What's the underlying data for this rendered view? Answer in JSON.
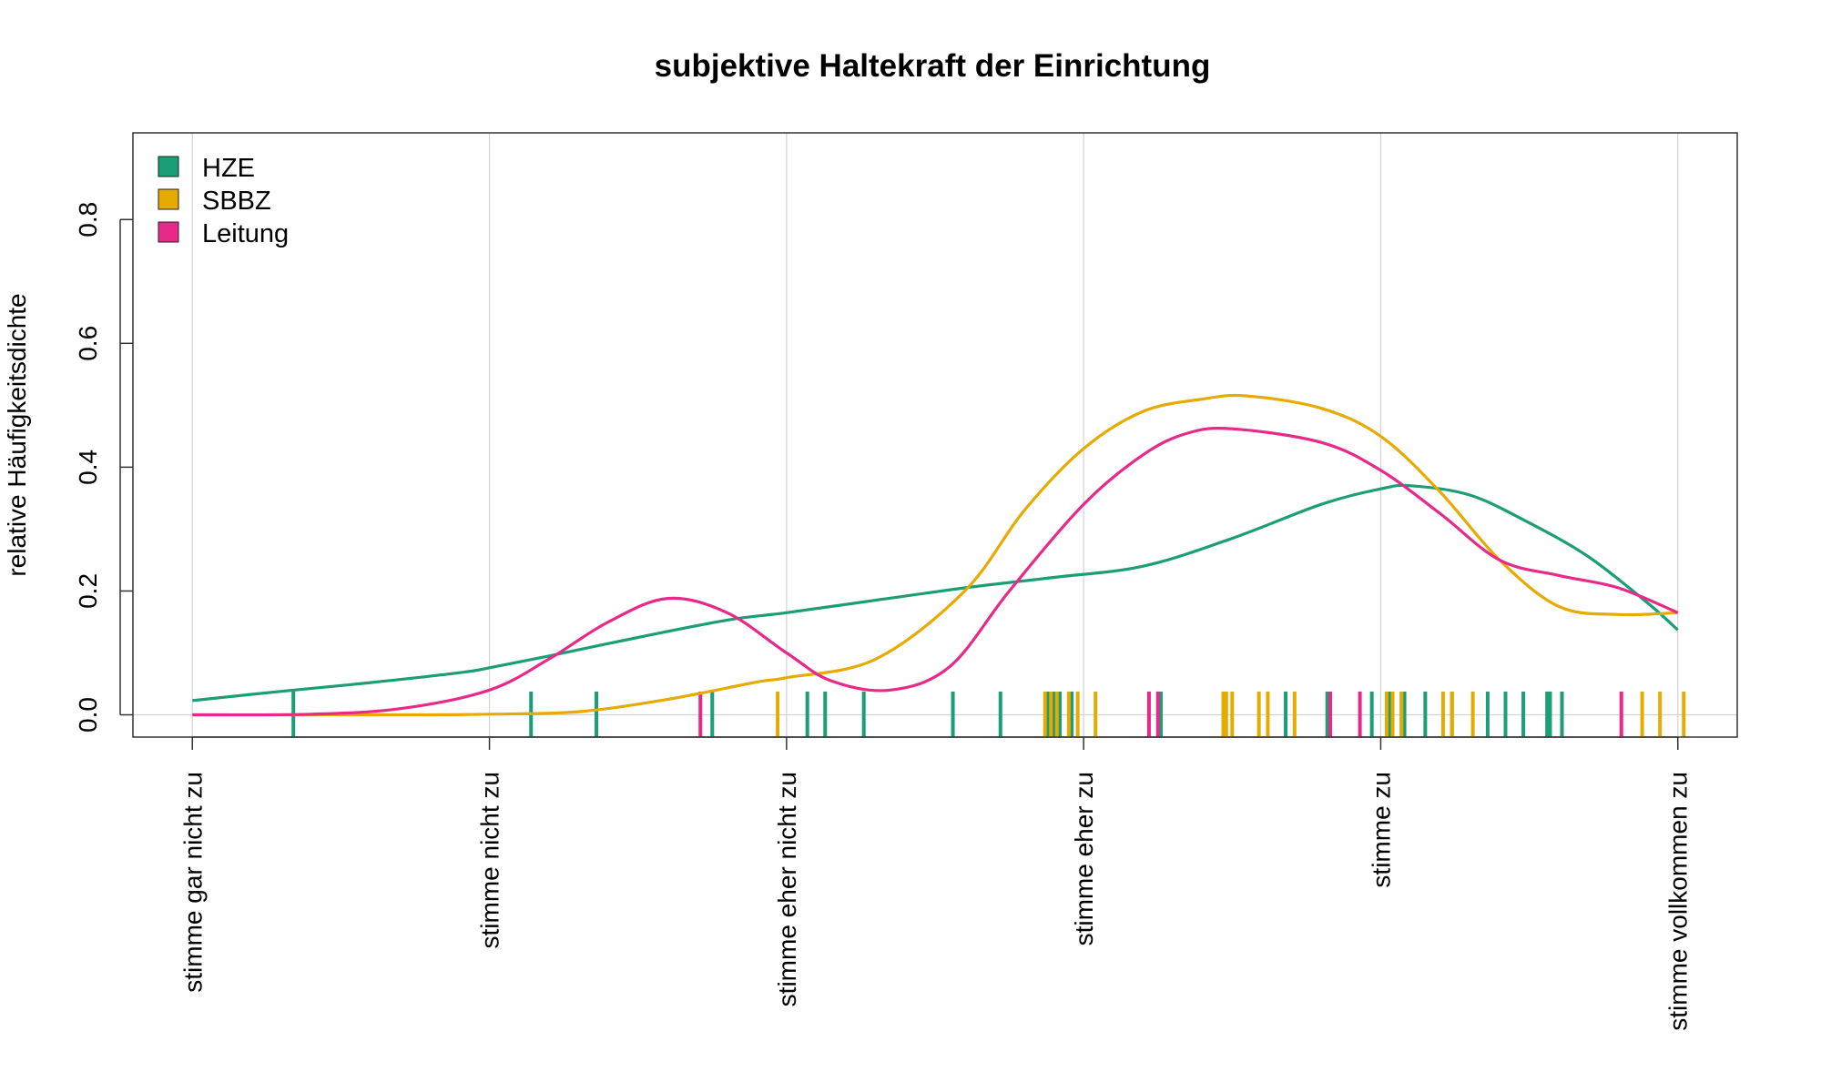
{
  "chart_data": {
    "type": "line",
    "title": "subjektive Haltekraft der Einrichtung",
    "xlabel": "",
    "ylabel": "relative Häufigkeitsdichte",
    "x_categories": [
      "stimme gar nicht zu",
      "stimme nicht zu",
      "stimme eher nicht zu",
      "stimme eher zu",
      "stimme zu",
      "stimme vollkommen zu"
    ],
    "xlim": [
      0.8,
      6.2
    ],
    "ylim": [
      -0.036,
      0.94
    ],
    "yticks": [
      0.0,
      0.2,
      0.4,
      0.6,
      0.8
    ],
    "grid": true,
    "legend_position": "top-left",
    "series": [
      {
        "name": "HZE",
        "color": "#1b9e77",
        "x": [
          1.0,
          1.3,
          1.6,
          1.9,
          2.0,
          2.2,
          2.5,
          2.8,
          3.0,
          3.3,
          3.6,
          3.9,
          4.2,
          4.5,
          4.8,
          5.0,
          5.1,
          5.3,
          5.5,
          5.7,
          5.9,
          6.0
        ],
        "y": [
          0.023,
          0.038,
          0.052,
          0.068,
          0.076,
          0.095,
          0.125,
          0.153,
          0.165,
          0.185,
          0.205,
          0.222,
          0.24,
          0.285,
          0.34,
          0.365,
          0.37,
          0.355,
          0.31,
          0.255,
          0.18,
          0.137
        ],
        "rug": [
          1.34,
          2.14,
          2.36,
          2.75,
          3.07,
          3.13,
          3.26,
          3.56,
          3.72,
          3.88,
          3.9,
          3.92,
          3.96,
          4.26,
          4.68,
          4.82,
          4.97,
          5.03,
          5.07,
          5.08,
          5.15,
          5.24,
          5.36,
          5.42,
          5.48,
          5.56,
          5.57,
          5.61
        ]
      },
      {
        "name": "SBBZ",
        "color": "#e6ab02",
        "x": [
          1.0,
          1.5,
          1.8,
          2.0,
          2.3,
          2.6,
          2.9,
          3.0,
          3.3,
          3.6,
          3.8,
          4.0,
          4.2,
          4.4,
          4.55,
          4.8,
          5.0,
          5.2,
          5.4,
          5.6,
          5.8,
          6.0
        ],
        "y": [
          0.0,
          0.0,
          0.0,
          0.001,
          0.005,
          0.025,
          0.053,
          0.06,
          0.09,
          0.2,
          0.33,
          0.43,
          0.49,
          0.51,
          0.515,
          0.495,
          0.45,
          0.36,
          0.25,
          0.175,
          0.162,
          0.165
        ],
        "rug": [
          2.97,
          3.87,
          3.89,
          3.91,
          3.95,
          3.98,
          4.04,
          4.47,
          4.48,
          4.5,
          4.59,
          4.62,
          4.71,
          5.02,
          5.04,
          5.07,
          5.21,
          5.24,
          5.31,
          5.88,
          5.94,
          6.02
        ]
      },
      {
        "name": "Leitung",
        "color": "#e7298a",
        "x": [
          1.0,
          1.4,
          1.7,
          2.0,
          2.2,
          2.4,
          2.6,
          2.8,
          3.0,
          3.15,
          3.35,
          3.55,
          3.75,
          4.0,
          4.2,
          4.35,
          4.5,
          4.8,
          5.0,
          5.2,
          5.4,
          5.6,
          5.8,
          6.0
        ],
        "y": [
          0.0,
          0.001,
          0.01,
          0.04,
          0.09,
          0.15,
          0.188,
          0.165,
          0.1,
          0.055,
          0.04,
          0.078,
          0.2,
          0.34,
          0.42,
          0.455,
          0.462,
          0.44,
          0.395,
          0.325,
          0.25,
          0.225,
          0.205,
          0.165
        ],
        "rug": [
          2.71,
          4.22,
          4.25,
          4.83,
          4.93,
          5.81
        ]
      }
    ]
  }
}
